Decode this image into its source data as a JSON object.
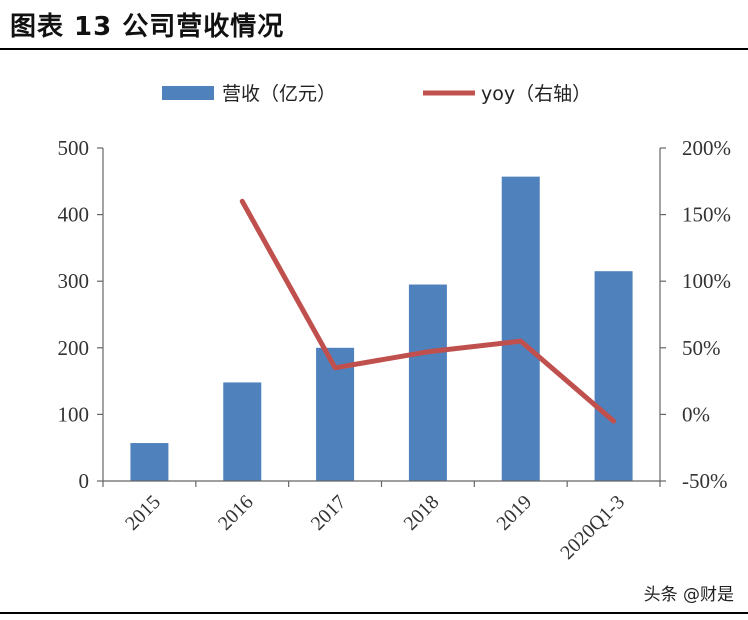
{
  "header": {
    "title": "图表 13  公司营收情况"
  },
  "watermark": "头条 @财是",
  "colors": {
    "bar": "#4f81bd",
    "line": "#c0504d",
    "axis": "#666666",
    "text": "#333333"
  },
  "chart_data": {
    "type": "bar+line",
    "categories": [
      "2015",
      "2016",
      "2017",
      "2018",
      "2019",
      "2020Q1-3"
    ],
    "series": [
      {
        "name": "营收（亿元）",
        "type": "bar",
        "axis": "left",
        "values": [
          57,
          148,
          200,
          295,
          457,
          315
        ]
      },
      {
        "name": "yoy（右轴）",
        "type": "line",
        "axis": "right",
        "values": [
          null,
          160,
          35,
          47,
          55,
          -5
        ]
      }
    ],
    "y_left": {
      "min": 0,
      "max": 500,
      "ticks": [
        0,
        100,
        200,
        300,
        400,
        500
      ],
      "tick_labels": [
        "0",
        "100",
        "200",
        "300",
        "400",
        "500"
      ]
    },
    "y_right": {
      "min": -50,
      "max": 200,
      "ticks": [
        -50,
        0,
        50,
        100,
        150,
        200
      ],
      "tick_labels": [
        "-50%",
        "0%",
        "50%",
        "100%",
        "150%",
        "200%"
      ]
    },
    "legend_position": "top-center",
    "grid": false
  }
}
